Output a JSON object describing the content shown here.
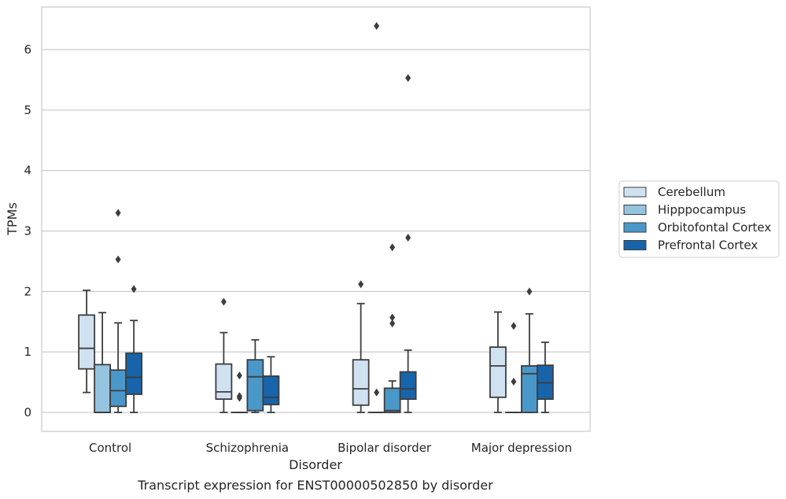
{
  "chart_data": {
    "type": "box",
    "title": "Transcript expression for ENST00000502850 by disorder",
    "xlabel": "Disorder",
    "ylabel": "TPMs",
    "ylim": [
      -0.3,
      7.0
    ],
    "yticks": [
      0,
      1,
      2,
      3,
      4,
      5,
      6
    ],
    "grid": true,
    "legend_position": "right",
    "categories": [
      "Control",
      "Schizophrenia",
      "Bipolar disorder",
      "Major depression"
    ],
    "series": [
      {
        "name": "Cerebellum",
        "color": "#d0e1f2",
        "boxes": [
          {
            "whislo": 0.33,
            "q1": 0.72,
            "med": 1.06,
            "q3": 1.61,
            "whishi": 2.02,
            "fliers": []
          },
          {
            "whislo": 0.0,
            "q1": 0.22,
            "med": 0.34,
            "q3": 0.8,
            "whishi": 1.32,
            "fliers": [
              1.83
            ]
          },
          {
            "whislo": 0.0,
            "q1": 0.12,
            "med": 0.39,
            "q3": 0.87,
            "whishi": 1.8,
            "fliers": [
              2.12
            ]
          },
          {
            "whislo": 0.0,
            "q1": 0.25,
            "med": 0.77,
            "q3": 1.08,
            "whishi": 1.66,
            "fliers": []
          }
        ]
      },
      {
        "name": "Hipppocampus",
        "color": "#94c4df",
        "boxes": [
          {
            "whislo": 0.0,
            "q1": 0.0,
            "med": 0.0,
            "q3": 0.79,
            "whishi": 1.65,
            "fliers": []
          },
          {
            "whislo": 0.0,
            "q1": 0.0,
            "med": 0.0,
            "q3": 0.0,
            "whishi": 0.0,
            "fliers": [
              0.24,
              0.27,
              0.61
            ]
          },
          {
            "whislo": 0.0,
            "q1": 0.0,
            "med": 0.0,
            "q3": 0.0,
            "whishi": 0.0,
            "fliers": [
              0.33,
              6.39
            ]
          },
          {
            "whislo": 0.0,
            "q1": 0.0,
            "med": 0.0,
            "q3": 0.0,
            "whishi": 0.0,
            "fliers": [
              0.51,
              1.43
            ]
          }
        ]
      },
      {
        "name": "Orbitofontal Cortex",
        "color": "#4a98c9",
        "boxes": [
          {
            "whislo": 0.0,
            "q1": 0.1,
            "med": 0.36,
            "q3": 0.7,
            "whishi": 1.48,
            "fliers": [
              2.53,
              3.3
            ]
          },
          {
            "whislo": 0.0,
            "q1": 0.03,
            "med": 0.59,
            "q3": 0.87,
            "whishi": 1.2,
            "fliers": []
          },
          {
            "whislo": 0.0,
            "q1": 0.0,
            "med": 0.03,
            "q3": 0.4,
            "whishi": 0.52,
            "fliers": [
              1.47,
              1.57,
              2.73
            ]
          },
          {
            "whislo": 0.0,
            "q1": 0.0,
            "med": 0.64,
            "q3": 0.77,
            "whishi": 1.63,
            "fliers": [
              2.0
            ]
          }
        ]
      },
      {
        "name": "Prefrontal Cortex",
        "color": "#1764ab",
        "boxes": [
          {
            "whislo": 0.0,
            "q1": 0.3,
            "med": 0.58,
            "q3": 0.98,
            "whishi": 1.52,
            "fliers": [
              2.04
            ]
          },
          {
            "whislo": 0.0,
            "q1": 0.13,
            "med": 0.25,
            "q3": 0.6,
            "whishi": 0.92,
            "fliers": []
          },
          {
            "whislo": 0.0,
            "q1": 0.22,
            "med": 0.39,
            "q3": 0.67,
            "whishi": 1.03,
            "fliers": [
              5.53,
              2.89
            ]
          },
          {
            "whislo": 0.0,
            "q1": 0.22,
            "med": 0.49,
            "q3": 0.78,
            "whishi": 1.16,
            "fliers": []
          }
        ]
      }
    ]
  }
}
